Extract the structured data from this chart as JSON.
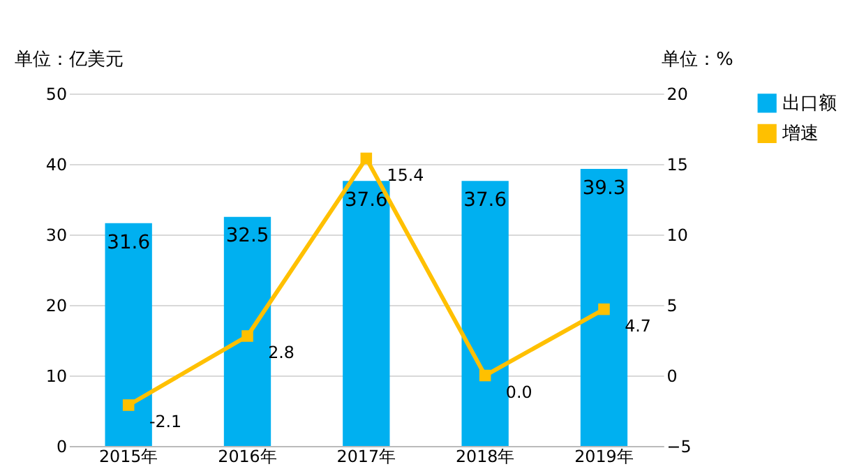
{
  "chart_data": {
    "type": "bar",
    "categories": [
      "2015年",
      "2016年",
      "2017年",
      "2018年",
      "2019年"
    ],
    "series": [
      {
        "name": "出口额",
        "color": "#00b0f0",
        "values": [
          31.6,
          32.5,
          37.6,
          37.6,
          39.3
        ]
      },
      {
        "name": "增速",
        "type": "line",
        "axis": "y2",
        "color": "#ffc000",
        "marker": "square",
        "values": [
          -2.1,
          2.8,
          15.4,
          0.0,
          4.7
        ],
        "value_labels": [
          "-2.1",
          "2.8",
          "15.4",
          "0.0",
          "4.7"
        ]
      }
    ],
    "ylabel": "单位：亿美元",
    "y2label": "单位：%",
    "ylim": [
      0,
      50
    ],
    "yticks": [
      0,
      10,
      20,
      30,
      40,
      50
    ],
    "y2lim": [
      -5,
      20
    ],
    "y2ticks": [
      -5,
      0,
      5,
      10,
      15,
      20
    ],
    "data_labels": true,
    "grid": "y",
    "legend": "right"
  }
}
